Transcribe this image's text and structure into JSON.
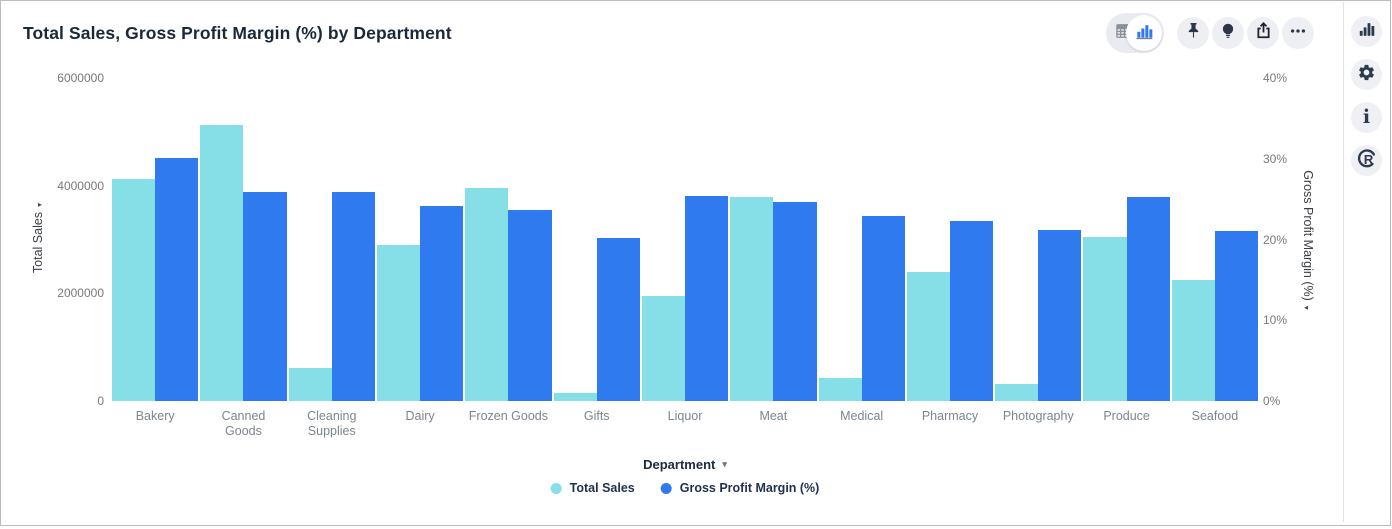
{
  "header": {
    "title": "Total Sales, Gross Profit Margin (%) by Department"
  },
  "toolbar": {
    "view_toggle": {
      "options": [
        {
          "icon": "table-view-icon",
          "selected": false
        },
        {
          "icon": "bar-chart-view-icon",
          "selected": true
        }
      ]
    },
    "buttons": [
      {
        "icon": "pin-icon"
      },
      {
        "icon": "lightbulb-icon"
      },
      {
        "icon": "share-icon"
      },
      {
        "icon": "more-options-icon"
      }
    ],
    "selected_color": "#2f7aee",
    "inactive_color": "#8a9099"
  },
  "sidebar": {
    "buttons": [
      {
        "icon": "chart-type-icon"
      },
      {
        "icon": "settings-gear-icon"
      },
      {
        "icon": "info-icon",
        "glyph": "i"
      },
      {
        "icon": "r-logo-icon",
        "glyph": "R"
      }
    ],
    "icon_color": "#2c3a4f"
  },
  "chart_data": {
    "type": "bar",
    "title": "Total Sales, Gross Profit Margin (%) by Department",
    "categories": [
      "Bakery",
      "Canned Goods",
      "Cleaning Supplies",
      "Dairy",
      "Frozen Goods",
      "Gifts",
      "Liquor",
      "Meat",
      "Medical",
      "Pharmacy",
      "Photography",
      "Produce",
      "Seafood"
    ],
    "series": [
      {
        "name": "Total Sales",
        "axis": "left",
        "color": "#86dee6",
        "values": [
          4120000,
          5130000,
          620000,
          2900000,
          3950000,
          155000,
          1960000,
          3790000,
          430000,
          2390000,
          315000,
          3050000,
          2240000
        ]
      },
      {
        "name": "Gross Profit Margin (%)",
        "axis": "right",
        "color": "#2f7aee",
        "values": [
          30.1,
          25.9,
          25.9,
          24.2,
          23.6,
          20.2,
          25.4,
          24.7,
          22.9,
          22.3,
          21.2,
          25.3,
          21.0
        ]
      }
    ],
    "left_axis": {
      "label": "Total Sales",
      "ticks": [
        "6000000",
        "4000000",
        "2000000",
        "0"
      ],
      "tick_values": [
        6000000,
        4000000,
        2000000,
        0
      ],
      "max": 6000000
    },
    "right_axis": {
      "label": "Gross Profit Margin (%)",
      "ticks": [
        "40%",
        "30%",
        "20%",
        "10%",
        "0%"
      ],
      "tick_values": [
        40,
        30,
        20,
        10,
        0
      ],
      "max": 40
    },
    "xlabel": "Department",
    "dropdown_arrow": "▾",
    "axis_arrow": "▾",
    "grid": false,
    "legend_position": "bottom"
  }
}
